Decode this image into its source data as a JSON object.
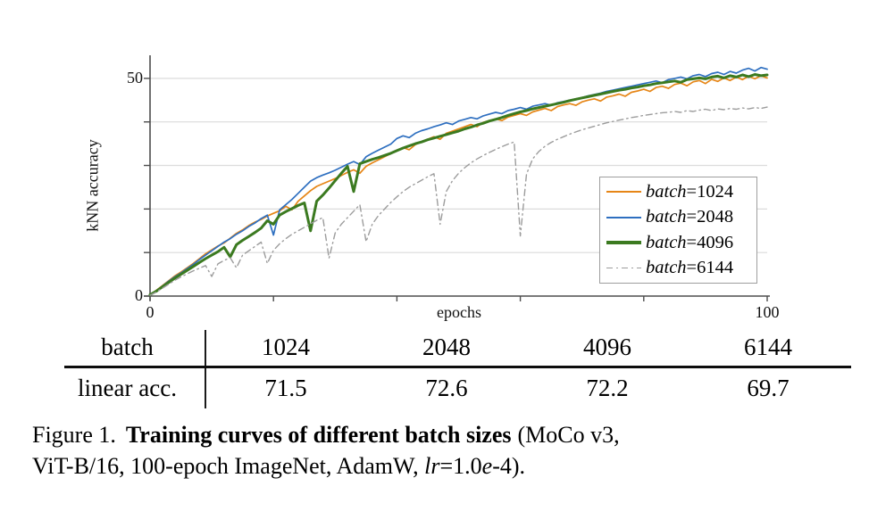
{
  "chart_data": {
    "type": "line",
    "title": "",
    "xlabel": "epochs",
    "ylabel": "kNN accuracy",
    "xlim": [
      0,
      100
    ],
    "ylim": [
      0,
      55.3
    ],
    "xticks": [
      0,
      20,
      40,
      60,
      80,
      100
    ],
    "yticks": [
      0,
      10,
      20,
      30,
      40,
      50
    ],
    "axis_tick_labels": {
      "x_min": "0",
      "x_max": "100",
      "y_min": "0",
      "y_max": "50"
    },
    "grid": "horizontal",
    "legend_position": "right-center-inside",
    "colors": {
      "grid": "#dcdcdc",
      "axis": "#4d4d4d"
    },
    "x_start": 0,
    "x_step": 1,
    "series": [
      {
        "name": "batch=1024",
        "color": "#E68617",
        "dash": "solid",
        "width": 1.7,
        "values": [
          0.3,
          1.3,
          2.4,
          3.5,
          4.6,
          5.5,
          6.5,
          7.5,
          8.6,
          9.7,
          10.6,
          11.5,
          12.2,
          13.3,
          14.4,
          15.2,
          16.2,
          17.0,
          17.6,
          18.4,
          19.0,
          19.6,
          20.6,
          19.8,
          21.8,
          23.0,
          24.2,
          25.2,
          25.8,
          26.4,
          27.0,
          27.7,
          28.4,
          29.0,
          28.2,
          29.8,
          30.6,
          31.3,
          32.0,
          32.7,
          33.4,
          34.1,
          33.6,
          34.8,
          35.4,
          36.0,
          36.6,
          36.0,
          37.4,
          37.9,
          38.4,
          38.9,
          39.4,
          38.9,
          39.9,
          40.3,
          40.7,
          40.3,
          41.1,
          41.5,
          41.9,
          41.5,
          42.3,
          42.7,
          43.1,
          42.6,
          43.5,
          43.9,
          44.2,
          43.8,
          44.6,
          45.0,
          45.3,
          44.8,
          45.7,
          46.0,
          46.4,
          45.9,
          46.8,
          47.1,
          47.5,
          47.0,
          47.9,
          48.2,
          47.7,
          48.6,
          48.9,
          48.3,
          49.2,
          49.5,
          48.8,
          49.8,
          49.3,
          50.1,
          49.5,
          50.3,
          49.7,
          50.5,
          49.9,
          50.6,
          50.1
        ]
      },
      {
        "name": "batch=2048",
        "color": "#2E6FC0",
        "dash": "solid",
        "width": 1.7,
        "values": [
          0.3,
          1.2,
          2.3,
          3.4,
          4.4,
          5.3,
          6.3,
          7.3,
          8.4,
          9.4,
          10.4,
          11.4,
          12.4,
          13.2,
          14.2,
          15.0,
          16.0,
          16.8,
          17.8,
          18.6,
          14.0,
          19.8,
          21.0,
          22.2,
          23.6,
          25.0,
          26.4,
          27.2,
          27.8,
          28.3,
          28.9,
          29.6,
          30.3,
          30.9,
          30.2,
          32.0,
          32.8,
          33.5,
          34.2,
          34.9,
          36.2,
          36.8,
          36.4,
          37.4,
          38.0,
          38.4,
          38.9,
          39.3,
          39.8,
          39.4,
          40.2,
          40.6,
          41.0,
          40.7,
          41.4,
          41.8,
          42.2,
          41.9,
          42.6,
          42.9,
          43.3,
          42.9,
          43.6,
          43.9,
          44.2,
          43.8,
          44.4,
          44.7,
          45.0,
          45.3,
          45.6,
          46.0,
          46.3,
          46.6,
          47.0,
          47.3,
          47.6,
          47.9,
          48.2,
          48.5,
          48.8,
          49.1,
          49.4,
          49.0,
          49.7,
          50.0,
          50.3,
          49.9,
          50.6,
          50.9,
          50.4,
          51.1,
          51.4,
          50.9,
          51.6,
          51.2,
          51.9,
          52.3,
          51.7,
          52.5,
          52.1
        ]
      },
      {
        "name": "batch=4096",
        "color": "#3B7A20",
        "dash": "solid",
        "width": 3.0,
        "values": [
          0.3,
          1.1,
          2.1,
          3.1,
          4.1,
          5.0,
          5.9,
          6.8,
          7.7,
          8.6,
          9.4,
          10.2,
          11.2,
          9.0,
          11.8,
          12.8,
          13.7,
          14.6,
          15.6,
          17.3,
          16.5,
          18.6,
          19.4,
          20.1,
          20.8,
          21.4,
          15.0,
          21.8,
          23.2,
          24.8,
          26.5,
          28.2,
          29.8,
          24.0,
          30.4,
          30.9,
          31.4,
          31.8,
          32.3,
          32.8,
          33.4,
          34.0,
          34.5,
          35.0,
          35.4,
          35.9,
          36.3,
          36.7,
          37.1,
          37.5,
          37.9,
          38.4,
          38.8,
          39.3,
          39.7,
          40.2,
          40.6,
          41.0,
          41.5,
          41.9,
          42.3,
          42.6,
          43.0,
          43.3,
          43.6,
          43.9,
          44.2,
          44.5,
          44.9,
          45.2,
          45.5,
          45.8,
          46.1,
          46.4,
          46.7,
          47.0,
          47.3,
          47.5,
          47.8,
          48.0,
          48.3,
          48.5,
          48.8,
          49.0,
          49.2,
          49.4,
          49.1,
          49.7,
          49.9,
          50.1,
          49.9,
          50.3,
          50.5,
          50.1,
          50.6,
          50.3,
          50.8,
          50.4,
          50.9,
          50.6,
          50.8
        ]
      },
      {
        "name": "batch=6144",
        "color": "#9C9C9C",
        "dash": "dashdot",
        "width": 1.4,
        "values": [
          0.2,
          0.9,
          1.8,
          2.7,
          3.6,
          4.4,
          5.1,
          5.8,
          6.4,
          7.0,
          4.5,
          7.4,
          8.2,
          8.8,
          6.5,
          9.4,
          10.4,
          11.4,
          12.4,
          7.5,
          10.5,
          12.0,
          13.2,
          14.2,
          15.0,
          15.8,
          16.6,
          17.4,
          18.0,
          8.7,
          14.5,
          16.5,
          18.0,
          19.5,
          21.0,
          12.5,
          16.5,
          18.5,
          20.0,
          21.5,
          22.8,
          24.0,
          25.0,
          25.8,
          26.6,
          27.4,
          28.1,
          16.5,
          24.0,
          26.5,
          28.2,
          29.5,
          30.6,
          31.5,
          32.3,
          33.0,
          33.7,
          34.3,
          34.9,
          35.4,
          13.8,
          28.0,
          31.5,
          33.2,
          34.4,
          35.3,
          36.0,
          36.6,
          37.2,
          37.7,
          38.2,
          38.6,
          39.0,
          39.4,
          39.8,
          40.1,
          40.4,
          40.7,
          41.0,
          41.2,
          41.5,
          41.7,
          41.9,
          42.1,
          42.2,
          42.4,
          42.2,
          42.6,
          42.4,
          42.7,
          42.9,
          42.6,
          43.0,
          42.8,
          43.1,
          42.9,
          43.2,
          43.0,
          43.3,
          43.1,
          43.4
        ]
      }
    ]
  },
  "legend": {
    "items": [
      {
        "var": "batch",
        "val": "=1024"
      },
      {
        "var": "batch",
        "val": "=2048"
      },
      {
        "var": "batch",
        "val": "=4096"
      },
      {
        "var": "batch",
        "val": "=6144"
      }
    ]
  },
  "table": {
    "header_label": "batch",
    "row_label": "linear acc.",
    "columns": [
      "1024",
      "2048",
      "4096",
      "6144"
    ],
    "values": [
      "71.5",
      "72.6",
      "72.2",
      "69.7"
    ]
  },
  "caption": {
    "prefix": "Figure 1.",
    "bold": "Training curves of different batch sizes",
    "tail1": "(MoCo v3,",
    "line2_a": "ViT-B/16, 100-epoch ImageNet, AdamW, ",
    "line2_lr": "lr",
    "line2_eq": "=1.0",
    "line2_e": "e",
    "line2_b": "-4)."
  }
}
